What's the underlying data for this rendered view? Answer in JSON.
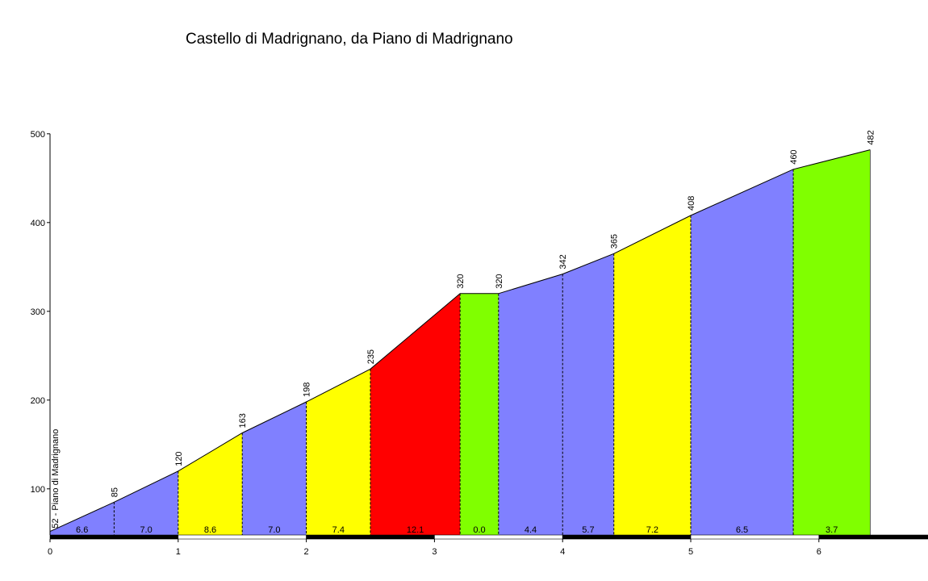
{
  "chart_data": {
    "type": "area",
    "title": "Castello di Madrignano, da Piano di Madrignano",
    "xlabel": "",
    "ylabel": "",
    "xlim": [
      0,
      6.8
    ],
    "ylim": [
      48,
      500
    ],
    "x_ticks": [
      0,
      1,
      2,
      3,
      4,
      5,
      6
    ],
    "y_ticks": [
      100,
      200,
      300,
      400,
      500
    ],
    "start_label": "52 - Piano di Madrignano",
    "points": [
      {
        "x": 0,
        "y": 52
      },
      {
        "x": 0.5,
        "y": 85,
        "label": "85"
      },
      {
        "x": 1.0,
        "y": 120,
        "label": "120"
      },
      {
        "x": 1.5,
        "y": 163,
        "label": "163"
      },
      {
        "x": 2.0,
        "y": 198,
        "label": "198"
      },
      {
        "x": 2.5,
        "y": 235,
        "label": "235"
      },
      {
        "x": 3.2,
        "y": 320,
        "label": "320"
      },
      {
        "x": 3.5,
        "y": 320,
        "label": "320"
      },
      {
        "x": 4.0,
        "y": 342,
        "label": "342"
      },
      {
        "x": 4.4,
        "y": 365,
        "label": "365"
      },
      {
        "x": 5.0,
        "y": 408,
        "label": "408"
      },
      {
        "x": 5.8,
        "y": 460,
        "label": "460"
      },
      {
        "x": 6.4,
        "y": 482,
        "label": "482"
      }
    ],
    "segments": [
      {
        "from": 0,
        "to": 0.5,
        "gradient": "6.6",
        "color": "#8080ff"
      },
      {
        "from": 0.5,
        "to": 1.0,
        "gradient": "7.0",
        "color": "#8080ff"
      },
      {
        "from": 1.0,
        "to": 1.5,
        "gradient": "8.6",
        "color": "#ffff00"
      },
      {
        "from": 1.5,
        "to": 2.0,
        "gradient": "7.0",
        "color": "#8080ff"
      },
      {
        "from": 2.0,
        "to": 2.5,
        "gradient": "7.4",
        "color": "#ffff00"
      },
      {
        "from": 2.5,
        "to": 3.2,
        "gradient": "12.1",
        "color": "#ff0000"
      },
      {
        "from": 3.2,
        "to": 3.5,
        "gradient": "0.0",
        "color": "#80ff00"
      },
      {
        "from": 3.5,
        "to": 4.0,
        "gradient": "4.4",
        "color": "#8080ff"
      },
      {
        "from": 4.0,
        "to": 4.4,
        "gradient": "5.7",
        "color": "#8080ff"
      },
      {
        "from": 4.4,
        "to": 5.0,
        "gradient": "7.2",
        "color": "#ffff00"
      },
      {
        "from": 5.0,
        "to": 5.8,
        "gradient": "6.5",
        "color": "#8080ff"
      },
      {
        "from": 5.8,
        "to": 6.4,
        "gradient": "3.7",
        "color": "#80ff00"
      }
    ]
  }
}
